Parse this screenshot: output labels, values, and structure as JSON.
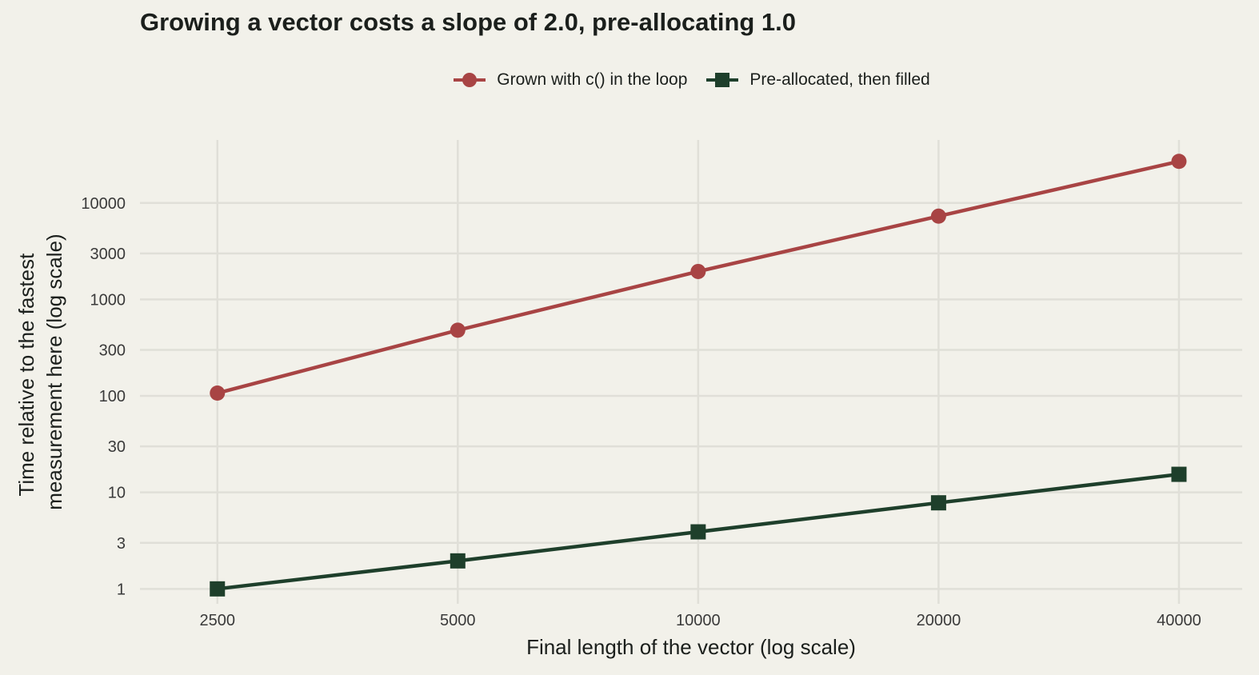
{
  "chart_data": {
    "type": "line",
    "title": "Growing a vector costs a slope of 2.0, pre-allocating 1.0",
    "xlabel": "Final length of the vector (log scale)",
    "ylabel_lines": [
      "Time relative to the fastest",
      "measurement here (log scale)"
    ],
    "x_scale": "log",
    "y_scale": "log",
    "x": [
      2500,
      5000,
      10000,
      20000,
      40000
    ],
    "x_ticks": [
      2500,
      5000,
      10000,
      20000,
      40000
    ],
    "y_ticks": [
      1,
      3,
      10,
      30,
      100,
      300,
      1000,
      3000,
      10000
    ],
    "xlim": [
      2000,
      48000
    ],
    "ylim": [
      0.7,
      45000
    ],
    "grid": true,
    "legend_position": "top",
    "series": [
      {
        "name": "Grown with c() in the loop",
        "color": "#a84444",
        "marker": "circle",
        "values": [
          107,
          480,
          1950,
          7300,
          27000
        ]
      },
      {
        "name": "Pre-allocated, then filled",
        "color": "#1e3f2b",
        "marker": "square",
        "values": [
          1,
          1.95,
          3.9,
          7.8,
          15.4
        ]
      }
    ]
  }
}
